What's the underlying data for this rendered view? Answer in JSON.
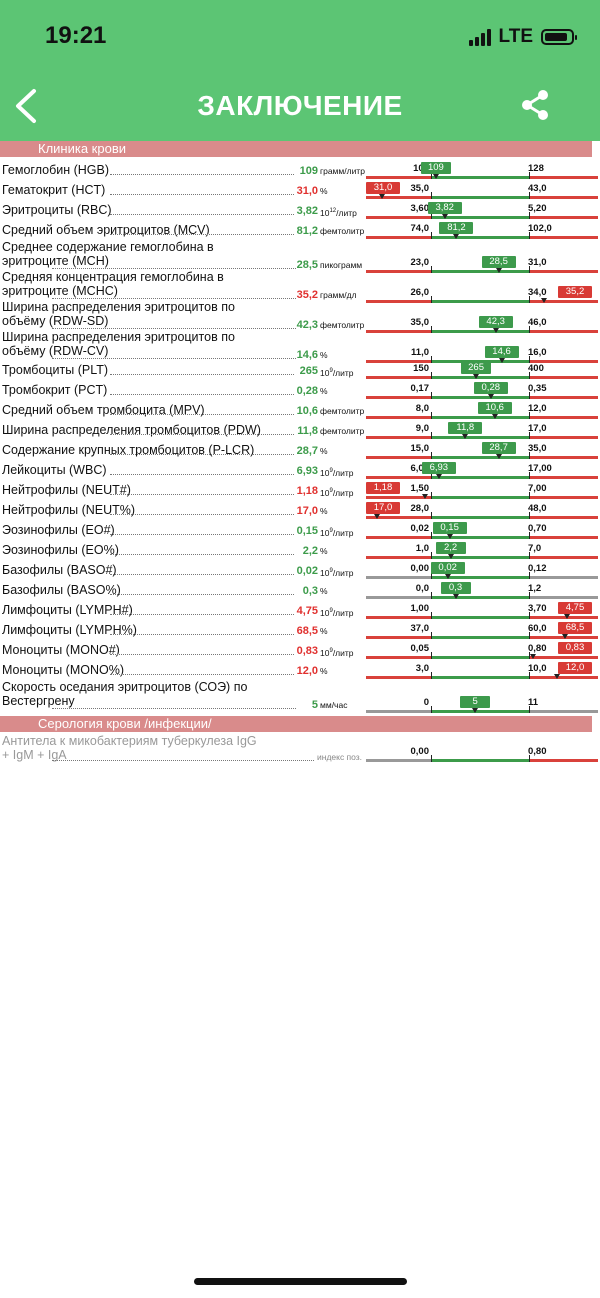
{
  "status": {
    "time": "19:21",
    "network": "LTE"
  },
  "header": {
    "title": "ЗАКЛЮЧЕНИЕ",
    "back_icon": "chevron-left-icon",
    "share_icon": "share-icon"
  },
  "sections": [
    {
      "title": "Клиника крови",
      "top": 141
    },
    {
      "title": "Серология крови /инфекции/",
      "top": 716
    }
  ],
  "colors": {
    "header": "#5cc574",
    "normal": "#3c9b4a",
    "abnormal": "#e0302e",
    "section": "#d98b8b"
  },
  "rows": [
    {
      "name": "Гемоглобин (HGB)",
      "value": "109",
      "unit": "грамм/литр",
      "min": "108",
      "max": "128",
      "status": "normal",
      "pos": 0.05
    },
    {
      "name": "Гематокрит (HCT)",
      "value": "31,0",
      "unit": "%",
      "min": "35,0",
      "max": "43,0",
      "status": "low",
      "pos": -0.5
    },
    {
      "name": "Эритроциты (RBC)",
      "value": "3,82",
      "unit": "10^12/литр",
      "min": "3,60",
      "max": "5,20",
      "status": "normal",
      "pos": 0.14
    },
    {
      "name": "Средний объем эритроцитов (MCV)",
      "value": "81,2",
      "unit": "фемтолитр",
      "min": "74,0",
      "max": "102,0",
      "status": "normal",
      "pos": 0.26
    },
    {
      "name": "Среднее содержание гемоглобина в эритроците (MCH)",
      "value": "28,5",
      "unit": "пикограмм",
      "min": "23,0",
      "max": "31,0",
      "status": "normal",
      "pos": 0.69
    },
    {
      "name": "Средняя концентрация гемоглобина в эритроците (MCHC)",
      "value": "35,2",
      "unit": "грамм/дл",
      "min": "26,0",
      "max": "34,0",
      "status": "high",
      "pos": 1.15
    },
    {
      "name": "Ширина распределения эритроцитов по объёму (RDW-SD)",
      "value": "42,3",
      "unit": "фемтолитр",
      "min": "35,0",
      "max": "46,0",
      "status": "normal",
      "pos": 0.66
    },
    {
      "name": "Ширина распределения эритроцитов по объёму (RDW-CV)",
      "value": "14,6",
      "unit": "%",
      "min": "11,0",
      "max": "16,0",
      "status": "normal",
      "pos": 0.72
    },
    {
      "name": "Тромбоциты (PLT)",
      "value": "265",
      "unit": "10^9/литр",
      "min": "150",
      "max": "400",
      "status": "normal",
      "pos": 0.46
    },
    {
      "name": "Тромбокрит (PCT)",
      "value": "0,28",
      "unit": "%",
      "min": "0,17",
      "max": "0,35",
      "status": "normal",
      "pos": 0.61
    },
    {
      "name": "Средний объем тромбоцита (MPV)",
      "value": "10,6",
      "unit": "фемтолитр",
      "min": "8,0",
      "max": "12,0",
      "status": "normal",
      "pos": 0.65
    },
    {
      "name": "Ширина распределения тромбоцитов (PDW)",
      "value": "11,8",
      "unit": "фемтолитр",
      "min": "9,0",
      "max": "17,0",
      "status": "normal",
      "pos": 0.35
    },
    {
      "name": "Содержание крупных тромбоцитов (P-LCR)",
      "value": "28,7",
      "unit": "%",
      "min": "15,0",
      "max": "35,0",
      "status": "normal",
      "pos": 0.69
    },
    {
      "name": "Лейкоциты (WBC)",
      "value": "6,93",
      "unit": "10^9/литр",
      "min": "6,00",
      "max": "17,00",
      "status": "normal",
      "pos": 0.08
    },
    {
      "name": "Нейтрофилы (NEUT#)",
      "value": "1,18",
      "unit": "10^9/литр",
      "min": "1,50",
      "max": "7,00",
      "status": "low",
      "pos": -0.06
    },
    {
      "name": "Нейтрофилы (NEUT%)",
      "value": "17,0",
      "unit": "%",
      "min": "28,0",
      "max": "48,0",
      "status": "low",
      "pos": -0.55
    },
    {
      "name": "Эозинофилы (EO#)",
      "value": "0,15",
      "unit": "10^9/литр",
      "min": "0,02",
      "max": "0,70",
      "status": "normal",
      "pos": 0.19
    },
    {
      "name": "Эозинофилы (EO%)",
      "value": "2,2",
      "unit": "%",
      "min": "1,0",
      "max": "7,0",
      "status": "normal",
      "pos": 0.2
    },
    {
      "name": "Базофилы (BASO#)",
      "value": "0,02",
      "unit": "10^9/литр",
      "min": "0,00",
      "max": "0,12",
      "status": "normal",
      "pos": 0.17,
      "gray": true
    },
    {
      "name": "Базофилы (BASO%)",
      "value": "0,3",
      "unit": "%",
      "min": "0,0",
      "max": "1,2",
      "status": "normal",
      "pos": 0.25,
      "gray": true
    },
    {
      "name": "Лимфоциты (LYMPH#)",
      "value": "4,75",
      "unit": "10^9/литр",
      "min": "1,00",
      "max": "3,70",
      "status": "high",
      "pos": 1.39
    },
    {
      "name": "Лимфоциты (LYMPH%)",
      "value": "68,5",
      "unit": "%",
      "min": "37,0",
      "max": "60,0",
      "status": "high",
      "pos": 1.37
    },
    {
      "name": "Моноциты (MONO#)",
      "value": "0,83",
      "unit": "10^9/литр",
      "min": "0,05",
      "max": "0,80",
      "status": "high",
      "pos": 1.04
    },
    {
      "name": "Моноциты (MONO%)",
      "value": "12,0",
      "unit": "%",
      "min": "3,0",
      "max": "10,0",
      "status": "high",
      "pos": 1.29
    },
    {
      "name": "Скорость оседания эритроцитов (СОЭ) по Вестергрену",
      "value": "5",
      "unit": "мм/час",
      "min": "0",
      "max": "11",
      "status": "normal",
      "pos": 0.45,
      "gray": true
    }
  ],
  "serology_row": {
    "name": "Антитела к микобактериям туберкулеза IgG + IgM + IgA",
    "unit": "индекс поз.",
    "min": "0,00",
    "max": "0,80"
  }
}
